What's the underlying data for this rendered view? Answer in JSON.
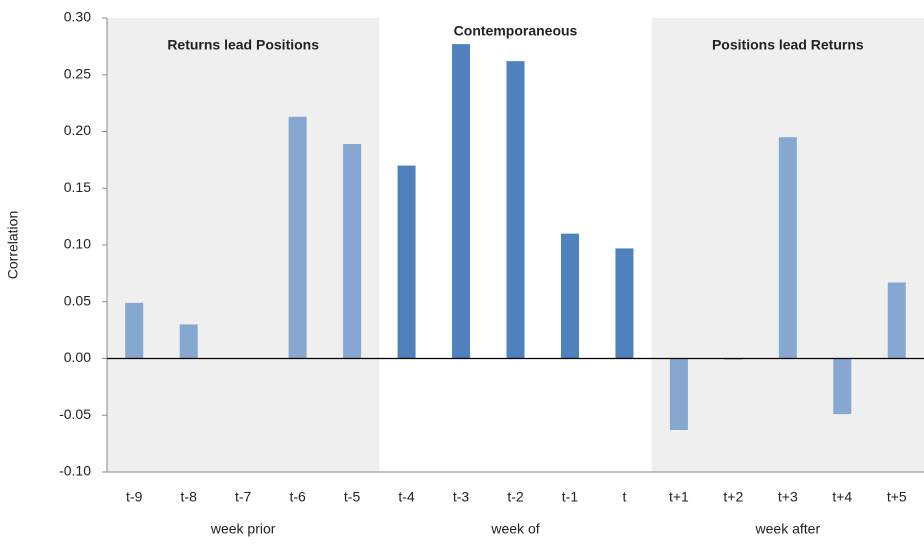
{
  "chart_data": {
    "type": "bar",
    "y_label": "Correlation",
    "ylim": [
      -0.1,
      0.3
    ],
    "yticks": [
      {
        "value": -0.1,
        "label": "-0.10"
      },
      {
        "value": -0.05,
        "label": "-0.05"
      },
      {
        "value": 0.0,
        "label": "0.00"
      },
      {
        "value": 0.05,
        "label": "0.05"
      },
      {
        "value": 0.1,
        "label": "0.10"
      },
      {
        "value": 0.15,
        "label": "0.15"
      },
      {
        "value": 0.2,
        "label": "0.20"
      },
      {
        "value": 0.25,
        "label": "0.25"
      },
      {
        "value": 0.3,
        "label": "0.30"
      }
    ],
    "groups": [
      {
        "label": "Returns lead Positions",
        "axis_label": "week prior",
        "shaded": true,
        "color": "#86a7d0",
        "categories": [
          "t-9",
          "t-8",
          "t-7",
          "t-6",
          "t-5"
        ],
        "values": [
          0.049,
          0.03,
          0.0,
          0.213,
          0.189
        ]
      },
      {
        "label": "Contemporaneous",
        "axis_label": "week of",
        "shaded": false,
        "color": "#4f81bd",
        "categories": [
          "t-4",
          "t-3",
          "t-2",
          "t-1",
          "t"
        ],
        "values": [
          0.17,
          0.277,
          0.262,
          0.11,
          0.097
        ]
      },
      {
        "label": "Positions lead Returns",
        "axis_label": "week after",
        "shaded": true,
        "color": "#86a7d0",
        "categories": [
          "t+1",
          "t+2",
          "t+3",
          "t+4",
          "t+5"
        ],
        "values": [
          -0.063,
          -0.001,
          0.195,
          -0.049,
          0.067
        ]
      }
    ]
  }
}
